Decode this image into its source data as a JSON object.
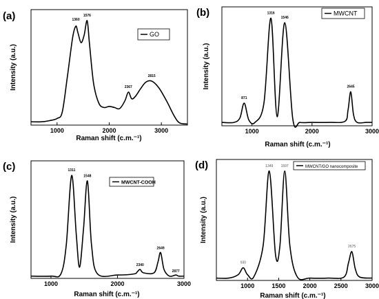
{
  "chart_data": [
    {
      "panel": "(a)",
      "type": "line",
      "ylabel": "Intensity (a.u.)",
      "xlabel": "Raman shift (c.m.⁻¹)",
      "xticks": [
        "1000",
        "2000",
        "3000"
      ],
      "xlim": [
        500,
        3500
      ],
      "ylim": [
        0,
        1.05
      ],
      "legend": "GO",
      "series": [
        {
          "name": "GO",
          "x": [
            500,
            700,
            850,
            1000,
            1100,
            1200,
            1300,
            1360,
            1400,
            1460,
            1520,
            1576,
            1620,
            1700,
            1800,
            1900,
            2000,
            2100,
            2200,
            2300,
            2367,
            2430,
            2500,
            2600,
            2700,
            2815,
            2950,
            3100,
            3250,
            3350,
            3500
          ],
          "y": [
            0.03,
            0.03,
            0.04,
            0.06,
            0.12,
            0.45,
            0.8,
            0.9,
            0.84,
            0.75,
            0.82,
            0.95,
            0.75,
            0.38,
            0.2,
            0.16,
            0.17,
            0.16,
            0.15,
            0.22,
            0.3,
            0.24,
            0.26,
            0.33,
            0.39,
            0.4,
            0.34,
            0.22,
            0.08,
            0.02,
            0.01
          ]
        }
      ],
      "peak_labels": [
        "1360",
        "1576",
        "2367",
        "2815"
      ],
      "peak_x": [
        1360,
        1576,
        2367,
        2815
      ]
    },
    {
      "panel": "(b)",
      "type": "line",
      "ylabel": "Intensity (a.u.)",
      "xlabel": "Raman shift (c.m.⁻¹)",
      "xticks": [
        "1000",
        "2000",
        "3000"
      ],
      "xlim": [
        500,
        3000
      ],
      "ylim": [
        0,
        1.05
      ],
      "legend": "MWCNT",
      "series": [
        {
          "name": "MWCNT",
          "x": [
            500,
            700,
            800,
            871,
            950,
            1050,
            1200,
            1316,
            1420,
            1546,
            1680,
            1800,
            2000,
            2300,
            2550,
            2600,
            2645,
            2690,
            2750,
            2900,
            3000
          ],
          "y": [
            0.03,
            0.03,
            0.07,
            0.2,
            0.05,
            0.03,
            0.2,
            0.95,
            0.08,
            0.91,
            0.06,
            0.03,
            0.03,
            0.03,
            0.04,
            0.14,
            0.3,
            0.1,
            0.03,
            0.03,
            0.03
          ]
        }
      ],
      "peak_labels": [
        "871",
        "1316",
        "1546",
        "2645"
      ],
      "peak_x": [
        871,
        1316,
        1546,
        2645
      ]
    },
    {
      "panel": "(c)",
      "type": "line",
      "ylabel": "Intensity (a.u.)",
      "xlabel": "Raman shift (c.m.⁻¹)",
      "xticks": [
        "1000",
        "2000",
        "3000"
      ],
      "xlim": [
        700,
        3000
      ],
      "ylim": [
        0,
        1.05
      ],
      "legend": "MWCNT-COOH",
      "series": [
        {
          "name": "MWCNT-COOH",
          "x": [
            700,
            1000,
            1150,
            1230,
            1311,
            1380,
            1430,
            1490,
            1548,
            1610,
            1700,
            2000,
            2250,
            2300,
            2340,
            2390,
            2550,
            2610,
            2649,
            2700,
            2780,
            2877,
            2920,
            3000
          ],
          "y": [
            0.02,
            0.02,
            0.04,
            0.3,
            0.92,
            0.4,
            0.1,
            0.45,
            0.87,
            0.3,
            0.04,
            0.03,
            0.04,
            0.06,
            0.08,
            0.05,
            0.05,
            0.15,
            0.23,
            0.08,
            0.02,
            0.03,
            0.02,
            0.02
          ]
        }
      ],
      "peak_labels": [
        "1311",
        "1548",
        "2340",
        "2649",
        "2877"
      ],
      "peak_x": [
        1311,
        1548,
        2340,
        2649,
        2877
      ]
    },
    {
      "panel": "(d)",
      "type": "line",
      "ylabel": "Intensity (a.u.)",
      "xlabel": "Raman shift (c.m.⁻¹)",
      "xticks": [
        "1000",
        "1500",
        "2000",
        "2500",
        "3000"
      ],
      "xlim": [
        500,
        3000
      ],
      "ylim": [
        0,
        1.05
      ],
      "legend": "MWCNT/GO nanocomposite",
      "series": [
        {
          "name": "MWCNT/GO nanocomposite",
          "x": [
            500,
            700,
            850,
            930,
            1000,
            1100,
            1250,
            1349,
            1450,
            1520,
            1597,
            1680,
            1800,
            2000,
            2300,
            2550,
            2620,
            2675,
            2730,
            2800,
            3000
          ],
          "y": [
            0.02,
            0.02,
            0.05,
            0.11,
            0.05,
            0.03,
            0.3,
            0.95,
            0.22,
            0.3,
            0.95,
            0.3,
            0.03,
            0.02,
            0.02,
            0.03,
            0.15,
            0.25,
            0.1,
            0.03,
            0.02
          ]
        }
      ],
      "peak_labels": [
        "930",
        "1349",
        "1597",
        "2675"
      ],
      "peak_x": [
        930,
        1349,
        1597,
        2675
      ]
    }
  ]
}
